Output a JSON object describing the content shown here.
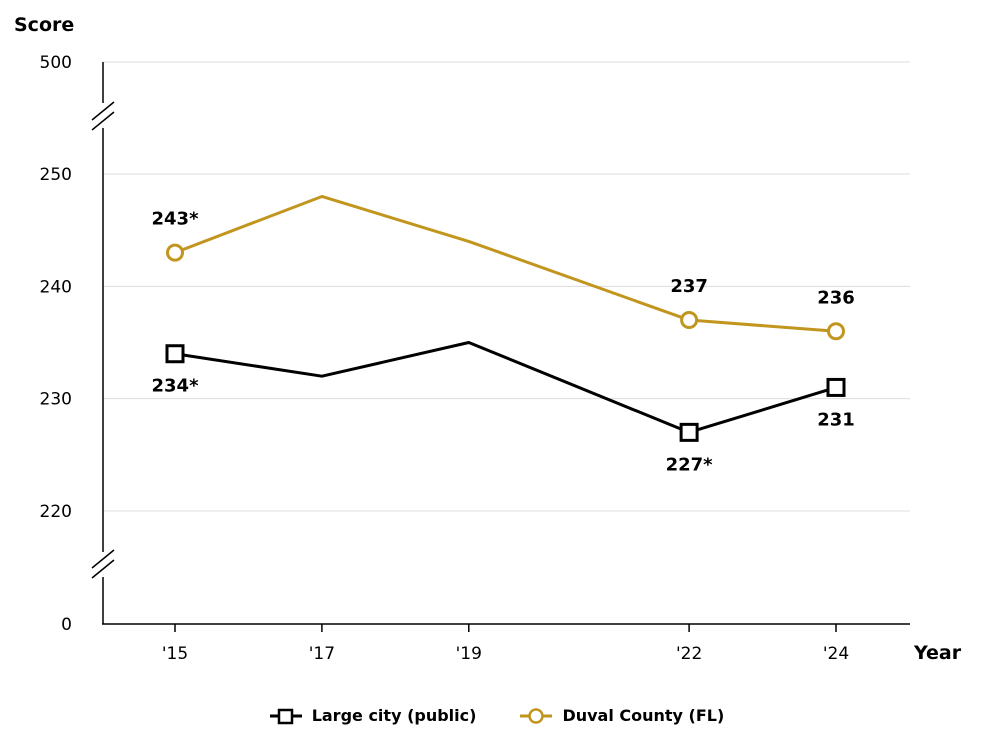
{
  "chart_data": {
    "type": "line",
    "ylabel": "Score",
    "xlabel": "Year",
    "x": [
      "'15",
      "'17",
      "'19",
      "'22",
      "'24"
    ],
    "x_years": [
      2015,
      2017,
      2019,
      2022,
      2024
    ],
    "y_ticks": [
      "500",
      "250",
      "240",
      "230",
      "220",
      "0"
    ],
    "ylim": [
      220,
      250
    ],
    "axis_breaks": [
      "between 250 and 500",
      "between 0 and 220"
    ],
    "grid": true,
    "legend_position": "bottom",
    "series": [
      {
        "name": "Large city (public)",
        "color": "#000000",
        "marker": "square",
        "values": [
          234,
          232,
          235,
          227,
          231
        ],
        "labels": [
          "234*",
          "",
          "",
          "227*",
          "231"
        ]
      },
      {
        "name": "Duval County (FL)",
        "color": "#c2961e",
        "marker": "circle",
        "values": [
          243,
          248,
          244,
          237,
          236
        ],
        "labels": [
          "243*",
          "",
          "",
          "237",
          "236"
        ]
      }
    ]
  }
}
